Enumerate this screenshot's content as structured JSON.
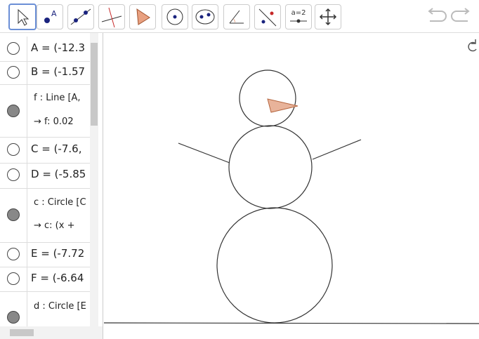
{
  "toolbar": {
    "slider_tool_label": "a=2"
  },
  "algebra_view": {
    "items": [
      {
        "text": "A = (-12.3"
      },
      {
        "text": "B = (-1.57"
      },
      {
        "definition": "f : Line [A, ",
        "value": "→  f: 0.02"
      },
      {
        "text": "C = (-7.6,"
      },
      {
        "text": "D = (-5.85"
      },
      {
        "definition": "c : Circle [C",
        "value": "→  c: (x +"
      },
      {
        "text": "E = (-7.72"
      },
      {
        "text": "F = (-6.64"
      },
      {
        "definition": "d : Circle [E"
      }
    ]
  }
}
